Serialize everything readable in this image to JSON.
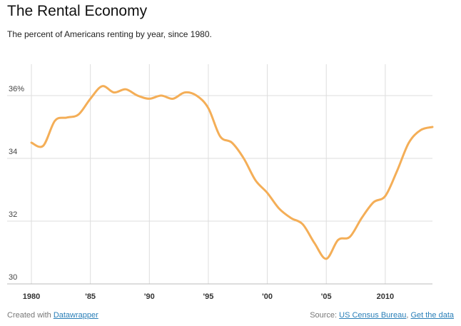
{
  "header": {
    "title": "The Rental Economy",
    "subtitle": "The percent of Americans renting by year, since 1980."
  },
  "footer": {
    "created_with_prefix": "Created with ",
    "created_with_link": "Datawrapper",
    "source_prefix": "Source: ",
    "source_link": "US Census Bureau",
    "separator": ", ",
    "data_link": "Get the data"
  },
  "colors": {
    "line": "#f4ae57",
    "grid": "#dddddd",
    "axis": "#555555"
  },
  "chart_data": {
    "type": "line",
    "title": "The Rental Economy",
    "subtitle": "The percent of Americans renting by year, since 1980.",
    "xlabel": "",
    "ylabel": "",
    "xlim": [
      1980,
      2014
    ],
    "ylim": [
      30,
      37
    ],
    "y_ticks": [
      {
        "value": 36,
        "label": "36%"
      },
      {
        "value": 34,
        "label": "34"
      },
      {
        "value": 32,
        "label": "32"
      },
      {
        "value": 30,
        "label": "30"
      }
    ],
    "x_ticks": [
      {
        "value": 1980,
        "label": "1980"
      },
      {
        "value": 1985,
        "label": "'85"
      },
      {
        "value": 1990,
        "label": "'90"
      },
      {
        "value": 1995,
        "label": "'95"
      },
      {
        "value": 2000,
        "label": "'00"
      },
      {
        "value": 2005,
        "label": "'05"
      },
      {
        "value": 2010,
        "label": "2010"
      }
    ],
    "grid": true,
    "series": [
      {
        "name": "",
        "x": [
          1980,
          1981,
          1982,
          1983,
          1984,
          1985,
          1986,
          1987,
          1988,
          1989,
          1990,
          1991,
          1992,
          1993,
          1994,
          1995,
          1996,
          1997,
          1998,
          1999,
          2000,
          2001,
          2002,
          2003,
          2004,
          2005,
          2006,
          2007,
          2008,
          2009,
          2010,
          2011,
          2012,
          2013,
          2014
        ],
        "values": [
          34.5,
          34.4,
          35.2,
          35.3,
          35.4,
          35.9,
          36.3,
          36.1,
          36.2,
          36.0,
          35.9,
          36.0,
          35.9,
          36.1,
          36.0,
          35.6,
          34.7,
          34.5,
          34.0,
          33.3,
          32.9,
          32.4,
          32.1,
          31.9,
          31.3,
          30.8,
          31.4,
          31.5,
          32.1,
          32.6,
          32.8,
          33.6,
          34.5,
          34.9,
          35.0
        ]
      }
    ]
  }
}
